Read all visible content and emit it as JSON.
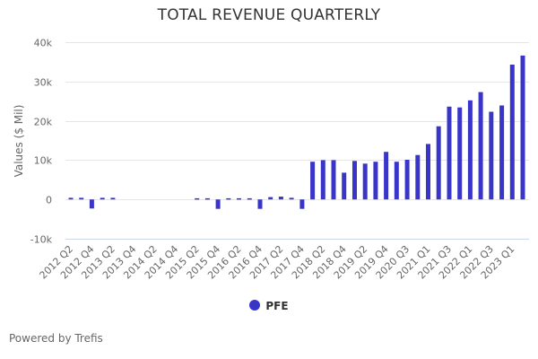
{
  "chart_data": {
    "type": "bar",
    "title": "TOTAL REVENUE QUARTERLY",
    "ylabel": "Values ($ Mil)",
    "xlabel": "",
    "ylim": [
      -10000,
      40000
    ],
    "yticks": [
      {
        "value": 40000,
        "label": "40k"
      },
      {
        "value": 30000,
        "label": "30k"
      },
      {
        "value": 20000,
        "label": "20k"
      },
      {
        "value": 10000,
        "label": "10k"
      },
      {
        "value": 0,
        "label": "0"
      },
      {
        "value": -10000,
        "label": "-10k"
      }
    ],
    "grid": true,
    "category_count": 44,
    "x_tick_labels": [
      {
        "index": 0,
        "label": "2012 Q2"
      },
      {
        "index": 2,
        "label": "2012 Q4"
      },
      {
        "index": 4,
        "label": "2013 Q2"
      },
      {
        "index": 6,
        "label": "2013 Q4"
      },
      {
        "index": 8,
        "label": "2014 Q2"
      },
      {
        "index": 10,
        "label": "2014 Q4"
      },
      {
        "index": 12,
        "label": "2015 Q2"
      },
      {
        "index": 14,
        "label": "2015 Q4"
      },
      {
        "index": 16,
        "label": "2016 Q2"
      },
      {
        "index": 18,
        "label": "2016 Q4"
      },
      {
        "index": 20,
        "label": "2017 Q2"
      },
      {
        "index": 22,
        "label": "2017 Q4"
      },
      {
        "index": 24,
        "label": "2018 Q2"
      },
      {
        "index": 26,
        "label": "2018 Q4"
      },
      {
        "index": 28,
        "label": "2019 Q2"
      },
      {
        "index": 30,
        "label": "2019 Q4"
      },
      {
        "index": 32,
        "label": "2020 Q3"
      },
      {
        "index": 34,
        "label": "2021 Q1"
      },
      {
        "index": 36,
        "label": "2021 Q3"
      },
      {
        "index": 38,
        "label": "2022 Q1"
      },
      {
        "index": 40,
        "label": "2022 Q3"
      },
      {
        "index": 42,
        "label": "2023 Q1"
      }
    ],
    "series": [
      {
        "name": "PFE",
        "color": "#3a35c9",
        "values": [
          400,
          400,
          -2300,
          400,
          400,
          null,
          null,
          null,
          null,
          null,
          null,
          null,
          300,
          300,
          -2400,
          300,
          300,
          300,
          -2400,
          600,
          700,
          400,
          -2400,
          9600,
          10000,
          10000,
          6800,
          9800,
          9100,
          9600,
          12100,
          9600,
          10100,
          11300,
          14100,
          18600,
          23600,
          23400,
          25200,
          27300,
          22300,
          23900,
          34300,
          36600
        ]
      }
    ],
    "legend": {
      "position": "bottom-center"
    }
  },
  "footer": {
    "text": "Powered by Trefis"
  }
}
